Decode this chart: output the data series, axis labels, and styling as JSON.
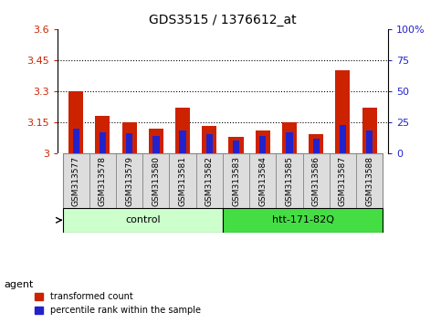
{
  "title": "GDS3515 / 1376612_at",
  "samples": [
    "GSM313577",
    "GSM313578",
    "GSM313579",
    "GSM313580",
    "GSM313581",
    "GSM313582",
    "GSM313583",
    "GSM313584",
    "GSM313585",
    "GSM313586",
    "GSM313587",
    "GSM313588"
  ],
  "transformed_count": [
    3.3,
    3.18,
    3.15,
    3.12,
    3.22,
    3.13,
    3.08,
    3.11,
    3.15,
    3.09,
    3.4,
    3.22
  ],
  "percentile_rank": [
    20,
    17,
    16,
    14,
    18,
    15,
    10,
    14,
    17,
    12,
    23,
    18
  ],
  "ylim_left": [
    3.0,
    3.6
  ],
  "ylim_right": [
    0,
    100
  ],
  "yticks_left": [
    3.0,
    3.15,
    3.3,
    3.45,
    3.6
  ],
  "yticks_right": [
    0,
    25,
    50,
    75,
    100
  ],
  "ytick_labels_left": [
    "3",
    "3.15",
    "3.3",
    "3.45",
    "3.6"
  ],
  "ytick_labels_right": [
    "0",
    "25",
    "50",
    "75",
    "100%"
  ],
  "hlines": [
    3.15,
    3.3,
    3.45
  ],
  "bar_color_red": "#cc2200",
  "bar_color_blue": "#2222cc",
  "bar_width": 0.55,
  "blue_bar_width": 0.25,
  "groups": [
    {
      "label": "control",
      "indices": [
        0,
        1,
        2,
        3,
        4,
        5
      ],
      "color": "#ccffcc"
    },
    {
      "label": "htt-171-82Q",
      "indices": [
        6,
        7,
        8,
        9,
        10,
        11
      ],
      "color": "#44dd44"
    }
  ],
  "group_row_label": "agent",
  "legend_red": "transformed count",
  "legend_blue": "percentile rank within the sample",
  "tick_label_color_left": "#cc2200",
  "tick_label_color_right": "#2222cc",
  "grey_cell_color": "#dddddd",
  "cell_border_color": "#888888"
}
